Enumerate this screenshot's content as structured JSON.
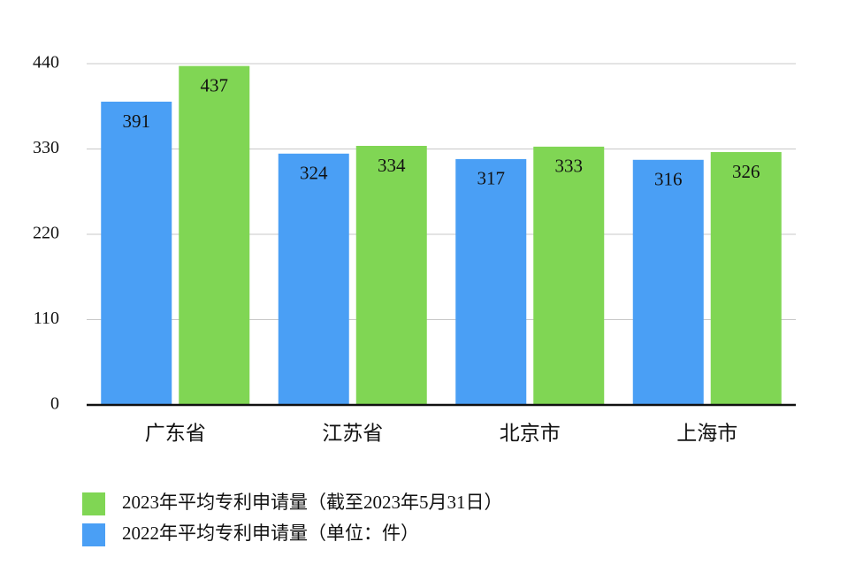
{
  "chart_data": {
    "type": "bar",
    "categories": [
      "广东省",
      "江苏省",
      "北京市",
      "上海市"
    ],
    "series": [
      {
        "name": "2023年平均专利申请量（截至2023年5月31日）",
        "color": "#80d654",
        "values": [
          437,
          334,
          333,
          326
        ]
      },
      {
        "name": "2022年平均专利申请量（单位：件）",
        "color": "#4a9ff5",
        "values": [
          391,
          324,
          317,
          316
        ]
      }
    ],
    "ylim": [
      0,
      440
    ],
    "yticks": [
      0,
      110,
      220,
      330,
      440
    ],
    "grid": true,
    "legend": "bottom"
  }
}
